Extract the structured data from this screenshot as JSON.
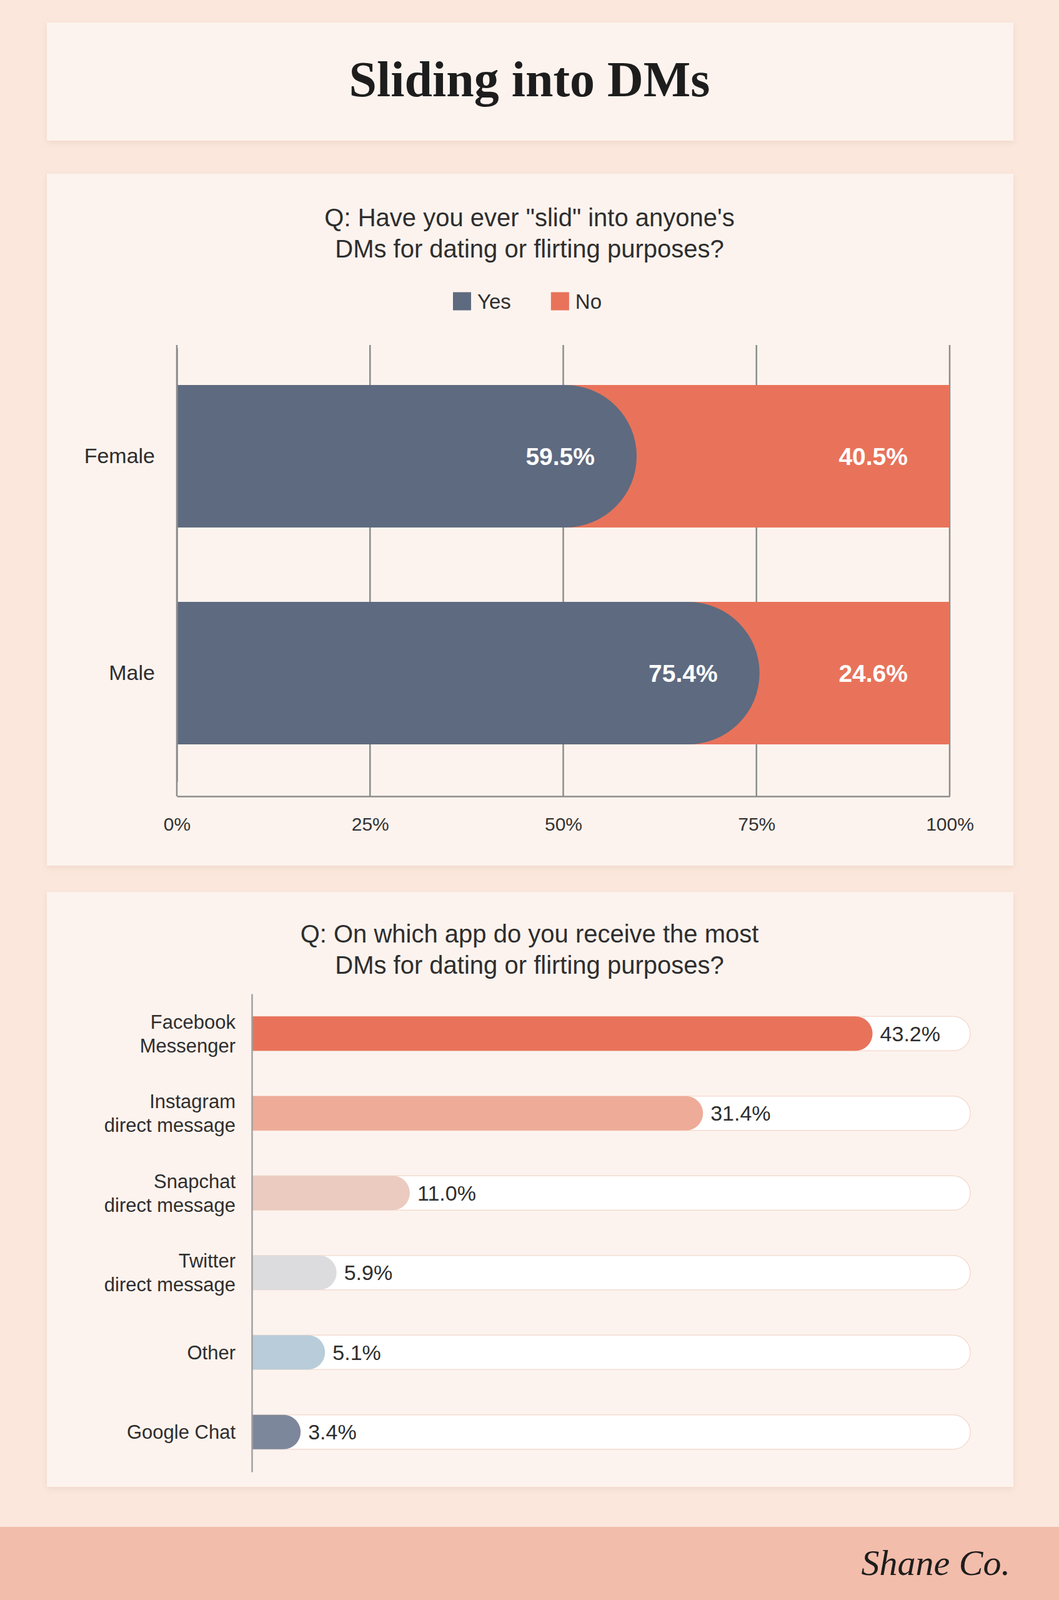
{
  "header": {
    "title": "Sliding into DMs"
  },
  "footer": {
    "logo": "Shane Co."
  },
  "chart_data": [
    {
      "type": "bar",
      "title": "Q: Have you ever \"slid\" into anyone's\nDMs for dating or flirting purposes?",
      "orientation": "horizontal",
      "stacked": true,
      "categories": [
        "Female",
        "Male"
      ],
      "series": [
        {
          "name": "Yes",
          "color": "#5e6a80",
          "values": [
            59.5,
            75.4
          ],
          "value_labels": [
            "59.5%",
            "75.4%"
          ]
        },
        {
          "name": "No",
          "color": "#e8735a",
          "values": [
            40.5,
            24.6
          ],
          "value_labels": [
            "40.5%",
            "24.6%"
          ]
        }
      ],
      "xlim": [
        0,
        100
      ],
      "xticks": [
        {
          "value": 0,
          "label": "0%"
        },
        {
          "value": 25,
          "label": "25%"
        },
        {
          "value": 50,
          "label": "50%"
        },
        {
          "value": 75,
          "label": "75%"
        },
        {
          "value": 100,
          "label": "100%"
        }
      ],
      "grid": true,
      "legend": "top",
      "data_labels": true
    },
    {
      "type": "bar",
      "title": "Q: On which app do you receive the most\nDMs for dating or flirting purposes?",
      "orientation": "horizontal",
      "categories": [
        "Facebook\nMessenger",
        "Instagram\ndirect message",
        "Snapchat\ndirect message",
        "Twitter\ndirect message",
        "Other",
        "Google Chat"
      ],
      "values": [
        43.2,
        31.4,
        11.0,
        5.9,
        5.1,
        3.4
      ],
      "value_labels": [
        "43.2%",
        "31.4%",
        "11.0%",
        "5.9%",
        "5.1%",
        "3.4%"
      ],
      "colors": [
        "#e8735a",
        "#eeab98",
        "#ebcbc0",
        "#dcdcde",
        "#b8cdd9",
        "#7d879c"
      ],
      "xlim": [
        0,
        50
      ],
      "tick_labels": "y",
      "data_labels": true
    }
  ]
}
